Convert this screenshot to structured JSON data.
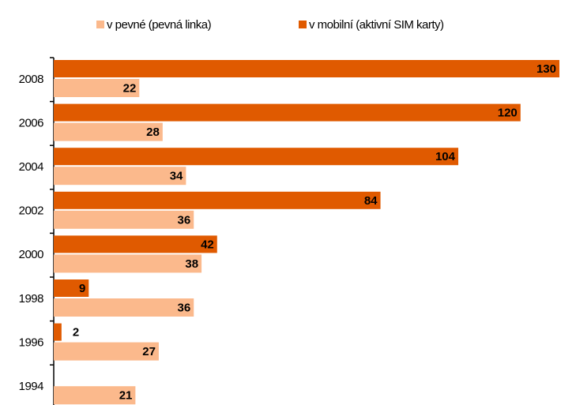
{
  "chart_data": {
    "type": "bar",
    "orientation": "horizontal",
    "categories": [
      "2008",
      "2006",
      "2004",
      "2002",
      "2000",
      "1998",
      "1996",
      "1994"
    ],
    "series": [
      {
        "name": "v mobilní (aktivní SIM karty)",
        "color": "#e05a00",
        "values": [
          130,
          120,
          104,
          84,
          42,
          9,
          2,
          null
        ]
      },
      {
        "name": "v pevné (pevná linka)",
        "color": "#fbb98c",
        "values": [
          22,
          28,
          34,
          36,
          38,
          36,
          27,
          21
        ]
      }
    ],
    "legend_order": [
      1,
      0
    ],
    "xlim": [
      0,
      130
    ]
  }
}
